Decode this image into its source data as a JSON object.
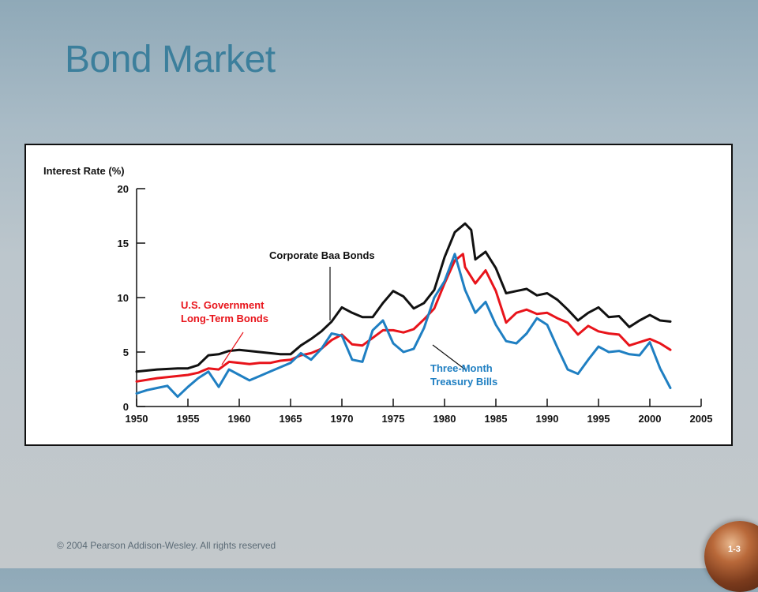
{
  "slide": {
    "title": "Bond Market",
    "footer": "© 2004 Pearson Addison-Wesley. All rights reserved",
    "page_number": "1-3"
  },
  "chart_data": {
    "type": "line",
    "ylabel": "Interest Rate (%)",
    "xlabel": "",
    "xlim": [
      1950,
      2005
    ],
    "ylim": [
      0,
      20
    ],
    "x_ticks": [
      1950,
      1955,
      1960,
      1965,
      1970,
      1975,
      1980,
      1985,
      1990,
      1995,
      2000,
      2005
    ],
    "y_ticks": [
      0,
      5,
      10,
      15,
      20
    ],
    "grid": false,
    "legend": "inline annotations",
    "series": [
      {
        "name": "Corporate Baa Bonds",
        "label_lines": [
          "Corporate Baa Bonds"
        ],
        "color": "#111111",
        "points": [
          [
            1950,
            3.2
          ],
          [
            1952,
            3.4
          ],
          [
            1954,
            3.5
          ],
          [
            1955,
            3.5
          ],
          [
            1956,
            3.8
          ],
          [
            1957,
            4.7
          ],
          [
            1958,
            4.8
          ],
          [
            1959,
            5.1
          ],
          [
            1960,
            5.2
          ],
          [
            1961,
            5.1
          ],
          [
            1962,
            5.0
          ],
          [
            1963,
            4.9
          ],
          [
            1964,
            4.8
          ],
          [
            1965,
            4.8
          ],
          [
            1966,
            5.6
          ],
          [
            1967,
            6.2
          ],
          [
            1968,
            6.9
          ],
          [
            1969,
            7.8
          ],
          [
            1970,
            9.1
          ],
          [
            1971,
            8.6
          ],
          [
            1972,
            8.2
          ],
          [
            1973,
            8.2
          ],
          [
            1974,
            9.5
          ],
          [
            1975,
            10.6
          ],
          [
            1976,
            10.1
          ],
          [
            1977,
            9.0
          ],
          [
            1978,
            9.5
          ],
          [
            1979,
            10.7
          ],
          [
            1980,
            13.7
          ],
          [
            1981,
            16.0
          ],
          [
            1982,
            16.8
          ],
          [
            1982.6,
            16.2
          ],
          [
            1983,
            13.5
          ],
          [
            1984,
            14.2
          ],
          [
            1985,
            12.7
          ],
          [
            1986,
            10.4
          ],
          [
            1987,
            10.6
          ],
          [
            1988,
            10.8
          ],
          [
            1989,
            10.2
          ],
          [
            1990,
            10.4
          ],
          [
            1991,
            9.8
          ],
          [
            1992,
            8.9
          ],
          [
            1993,
            7.9
          ],
          [
            1994,
            8.6
          ],
          [
            1995,
            9.1
          ],
          [
            1996,
            8.2
          ],
          [
            1997,
            8.3
          ],
          [
            1998,
            7.3
          ],
          [
            1999,
            7.9
          ],
          [
            2000,
            8.4
          ],
          [
            2001,
            7.9
          ],
          [
            2002,
            7.8
          ]
        ]
      },
      {
        "name": "U.S. Government Long-Term Bonds",
        "label_lines": [
          "U.S. Government",
          "Long-Term Bonds"
        ],
        "color": "#e8141b",
        "points": [
          [
            1950,
            2.3
          ],
          [
            1952,
            2.6
          ],
          [
            1954,
            2.8
          ],
          [
            1955,
            2.9
          ],
          [
            1956,
            3.1
          ],
          [
            1957,
            3.5
          ],
          [
            1958,
            3.4
          ],
          [
            1959,
            4.1
          ],
          [
            1960,
            4.0
          ],
          [
            1961,
            3.9
          ],
          [
            1962,
            4.0
          ],
          [
            1963,
            4.0
          ],
          [
            1964,
            4.2
          ],
          [
            1965,
            4.3
          ],
          [
            1966,
            4.7
          ],
          [
            1967,
            4.9
          ],
          [
            1968,
            5.3
          ],
          [
            1969,
            6.1
          ],
          [
            1970,
            6.6
          ],
          [
            1971,
            5.7
          ],
          [
            1972,
            5.6
          ],
          [
            1973,
            6.3
          ],
          [
            1974,
            7.0
          ],
          [
            1975,
            7.0
          ],
          [
            1976,
            6.8
          ],
          [
            1977,
            7.1
          ],
          [
            1978,
            8.0
          ],
          [
            1979,
            9.0
          ],
          [
            1980,
            11.3
          ],
          [
            1981,
            13.4
          ],
          [
            1981.8,
            14.0
          ],
          [
            1982,
            12.8
          ],
          [
            1983,
            11.3
          ],
          [
            1984,
            12.5
          ],
          [
            1985,
            10.6
          ],
          [
            1986,
            7.7
          ],
          [
            1987,
            8.6
          ],
          [
            1988,
            8.9
          ],
          [
            1989,
            8.5
          ],
          [
            1990,
            8.6
          ],
          [
            1991,
            8.1
          ],
          [
            1992,
            7.7
          ],
          [
            1993,
            6.6
          ],
          [
            1994,
            7.4
          ],
          [
            1995,
            6.9
          ],
          [
            1996,
            6.7
          ],
          [
            1997,
            6.6
          ],
          [
            1998,
            5.6
          ],
          [
            1999,
            5.9
          ],
          [
            2000,
            6.2
          ],
          [
            2001,
            5.8
          ],
          [
            2002,
            5.2
          ]
        ]
      },
      {
        "name": "Three-Month Treasury Bills",
        "label_lines": [
          "Three-Month",
          "Treasury Bills"
        ],
        "color": "#1f7fc2",
        "points": [
          [
            1950,
            1.2
          ],
          [
            1951,
            1.5
          ],
          [
            1952,
            1.7
          ],
          [
            1953,
            1.9
          ],
          [
            1954,
            0.9
          ],
          [
            1955,
            1.8
          ],
          [
            1956,
            2.6
          ],
          [
            1957,
            3.2
          ],
          [
            1958,
            1.8
          ],
          [
            1959,
            3.4
          ],
          [
            1960,
            2.9
          ],
          [
            1961,
            2.4
          ],
          [
            1962,
            2.8
          ],
          [
            1963,
            3.2
          ],
          [
            1964,
            3.6
          ],
          [
            1965,
            4.0
          ],
          [
            1966,
            4.9
          ],
          [
            1967,
            4.3
          ],
          [
            1968,
            5.3
          ],
          [
            1969,
            6.7
          ],
          [
            1970,
            6.5
          ],
          [
            1971,
            4.3
          ],
          [
            1972,
            4.1
          ],
          [
            1973,
            7.0
          ],
          [
            1974,
            7.9
          ],
          [
            1975,
            5.8
          ],
          [
            1976,
            5.0
          ],
          [
            1977,
            5.3
          ],
          [
            1978,
            7.2
          ],
          [
            1979,
            10.0
          ],
          [
            1980,
            11.5
          ],
          [
            1981,
            14.0
          ],
          [
            1982,
            10.7
          ],
          [
            1983,
            8.6
          ],
          [
            1984,
            9.6
          ],
          [
            1985,
            7.5
          ],
          [
            1986,
            6.0
          ],
          [
            1987,
            5.8
          ],
          [
            1988,
            6.7
          ],
          [
            1989,
            8.1
          ],
          [
            1990,
            7.5
          ],
          [
            1991,
            5.4
          ],
          [
            1992,
            3.4
          ],
          [
            1993,
            3.0
          ],
          [
            1994,
            4.3
          ],
          [
            1995,
            5.5
          ],
          [
            1996,
            5.0
          ],
          [
            1997,
            5.1
          ],
          [
            1998,
            4.8
          ],
          [
            1999,
            4.7
          ],
          [
            2000,
            5.9
          ],
          [
            2001,
            3.5
          ],
          [
            2002,
            1.7
          ]
        ]
      }
    ]
  }
}
